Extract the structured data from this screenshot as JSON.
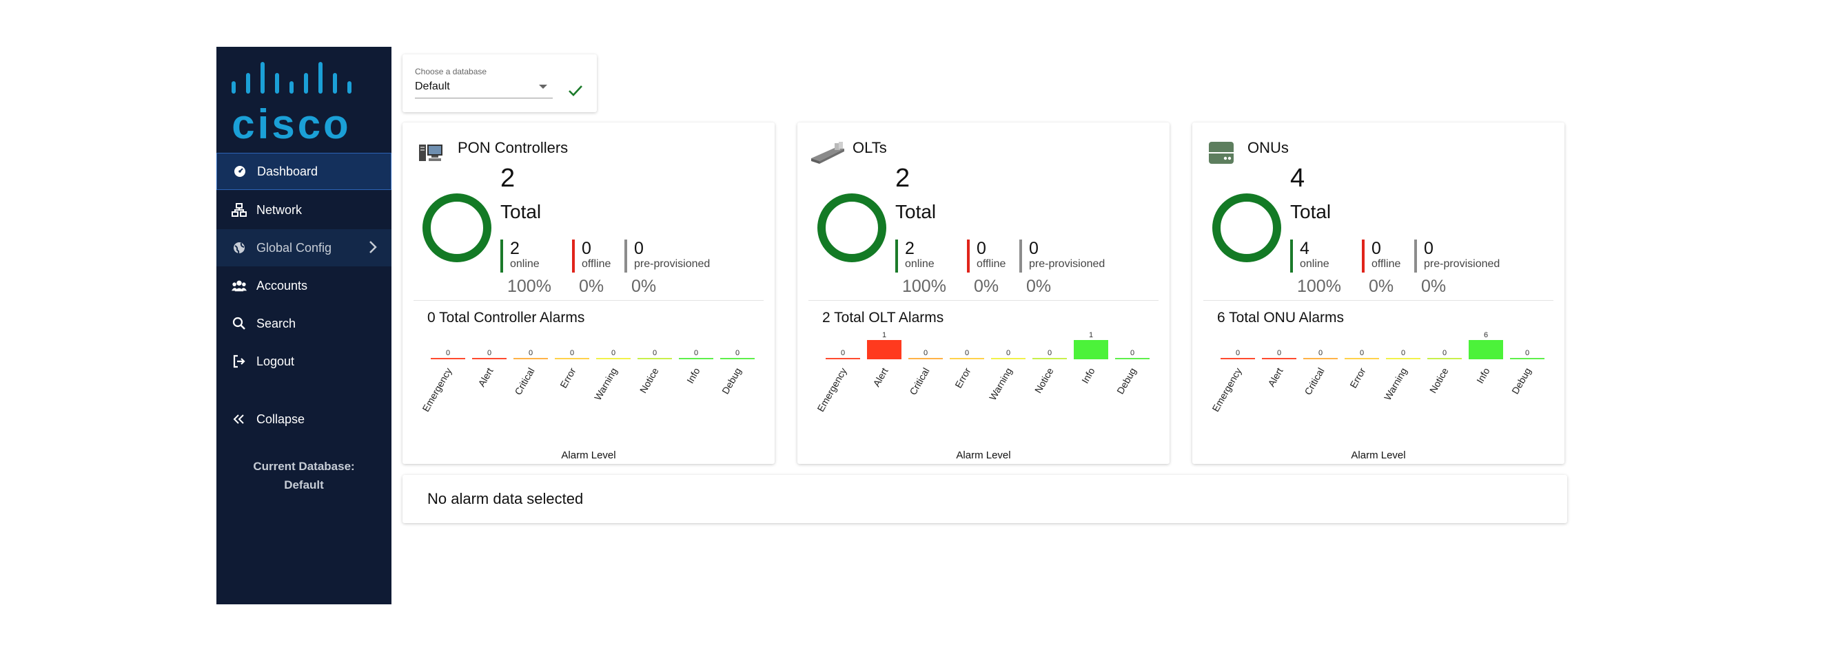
{
  "sidebar": {
    "logo_text": "cisco",
    "items": [
      {
        "label": "Dashboard",
        "icon": "dashboard-icon"
      },
      {
        "label": "Network",
        "icon": "network-icon"
      },
      {
        "label": "Global Config",
        "icon": "globe-icon"
      },
      {
        "label": "Accounts",
        "icon": "accounts-icon"
      },
      {
        "label": "Search",
        "icon": "search-icon"
      },
      {
        "label": "Logout",
        "icon": "logout-icon"
      }
    ],
    "collapse_label": "Collapse",
    "current_db_label": "Current Database:",
    "current_db_value": "Default"
  },
  "db_selector": {
    "label": "Choose a database",
    "value": "Default"
  },
  "cards": [
    {
      "title": "PON Controllers",
      "icon": "server-icon",
      "total": "2",
      "total_label": "Total",
      "online": "2",
      "online_label": "online",
      "online_pct": "100%",
      "offline": "0",
      "offline_label": "offline",
      "offline_pct": "0%",
      "preprov": "0",
      "preprov_label": "pre-provisioned",
      "preprov_pct": "0%",
      "alarm_title": "0 Total Controller Alarms",
      "online_fraction": 1.0
    },
    {
      "title": "OLTs",
      "icon": "olt-device-icon",
      "total": "2",
      "total_label": "Total",
      "online": "2",
      "online_label": "online",
      "online_pct": "100%",
      "offline": "0",
      "offline_label": "offline",
      "offline_pct": "0%",
      "preprov": "0",
      "preprov_label": "pre-provisioned",
      "preprov_pct": "0%",
      "alarm_title": "2 Total OLT Alarms",
      "online_fraction": 1.0
    },
    {
      "title": "ONUs",
      "icon": "onu-device-icon",
      "total": "4",
      "total_label": "Total",
      "online": "4",
      "online_label": "online",
      "online_pct": "100%",
      "offline": "0",
      "offline_label": "offline",
      "offline_pct": "0%",
      "preprov": "0",
      "preprov_label": "pre-provisioned",
      "preprov_pct": "0%",
      "alarm_title": "6 Total ONU Alarms",
      "online_fraction": 1.0
    }
  ],
  "chart_data": [
    {
      "type": "bar",
      "categories": [
        "Emergency",
        "Alert",
        "Critical",
        "Error",
        "Warning",
        "Notice",
        "Info",
        "Debug"
      ],
      "values": [
        0,
        0,
        0,
        0,
        0,
        0,
        0,
        0
      ],
      "colors": [
        "#ff4a2e",
        "#ff4a2e",
        "#ffb246",
        "#ffd24a",
        "#f2f24a",
        "#c8f04a",
        "#5ef04a",
        "#5ef04a"
      ],
      "xlabel": "Alarm Level"
    },
    {
      "type": "bar",
      "categories": [
        "Emergency",
        "Alert",
        "Critical",
        "Error",
        "Warning",
        "Notice",
        "Info",
        "Debug"
      ],
      "values": [
        0,
        1,
        0,
        0,
        0,
        0,
        1,
        0
      ],
      "colors": [
        "#ff4a2e",
        "#ff3a1e",
        "#ffb246",
        "#ffd24a",
        "#f2f24a",
        "#c8f04a",
        "#4cf23a",
        "#5ef04a"
      ],
      "xlabel": "Alarm Level"
    },
    {
      "type": "bar",
      "categories": [
        "Emergency",
        "Alert",
        "Critical",
        "Error",
        "Warning",
        "Notice",
        "Info",
        "Debug"
      ],
      "values": [
        0,
        0,
        0,
        0,
        0,
        0,
        6,
        0
      ],
      "colors": [
        "#ff4a2e",
        "#ff4a2e",
        "#ffb246",
        "#ffd24a",
        "#f2f24a",
        "#c8f04a",
        "#4cf23a",
        "#5ef04a"
      ],
      "xlabel": "Alarm Level"
    }
  ],
  "status_colors": {
    "online": "#1b7a2a",
    "offline": "#e0241b",
    "preprov": "#8c8c8c"
  },
  "no_alarm_text": "No alarm data selected"
}
